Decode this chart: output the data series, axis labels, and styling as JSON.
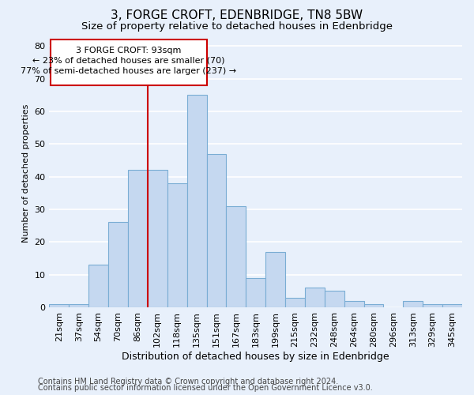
{
  "title": "3, FORGE CROFT, EDENBRIDGE, TN8 5BW",
  "subtitle": "Size of property relative to detached houses in Edenbridge",
  "xlabel": "Distribution of detached houses by size in Edenbridge",
  "ylabel": "Number of detached properties",
  "categories": [
    "21sqm",
    "37sqm",
    "54sqm",
    "70sqm",
    "86sqm",
    "102sqm",
    "118sqm",
    "135sqm",
    "151sqm",
    "167sqm",
    "183sqm",
    "199sqm",
    "215sqm",
    "232sqm",
    "248sqm",
    "264sqm",
    "280sqm",
    "296sqm",
    "313sqm",
    "329sqm",
    "345sqm"
  ],
  "values": [
    1,
    1,
    13,
    26,
    42,
    42,
    38,
    65,
    47,
    31,
    9,
    17,
    3,
    6,
    5,
    2,
    1,
    0,
    2,
    1,
    1
  ],
  "bar_color": "#c5d8f0",
  "bar_edge_color": "#7aadd4",
  "bar_width": 1.0,
  "ylim": [
    0,
    82
  ],
  "yticks": [
    0,
    10,
    20,
    30,
    40,
    50,
    60,
    70,
    80
  ],
  "vline_color": "#cc0000",
  "annotation_title": "3 FORGE CROFT: 93sqm",
  "annotation_line1": "← 23% of detached houses are smaller (70)",
  "annotation_line2": "77% of semi-detached houses are larger (237) →",
  "annotation_box_color": "#cc0000",
  "footer_line1": "Contains HM Land Registry data © Crown copyright and database right 2024.",
  "footer_line2": "Contains public sector information licensed under the Open Government Licence v3.0.",
  "bg_color": "#e8f0fb",
  "grid_color": "#ffffff",
  "title_fontsize": 11,
  "subtitle_fontsize": 9.5,
  "xlabel_fontsize": 9,
  "ylabel_fontsize": 8,
  "tick_fontsize": 8,
  "annotation_fontsize": 8,
  "footer_fontsize": 7
}
